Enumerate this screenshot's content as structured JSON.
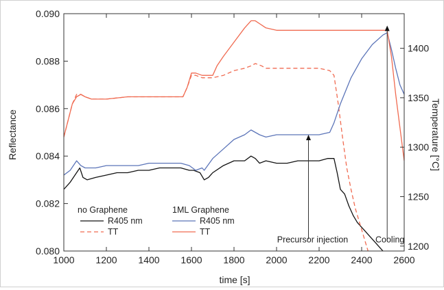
{
  "chart_data": {
    "type": "line",
    "xlabel": "time [s]",
    "ylabel_left": "Reflectance",
    "ylabel_right": "Temperature [°C]",
    "xlim": [
      1000,
      2600
    ],
    "ylim_left": [
      0.08,
      0.09
    ],
    "ylim_right": [
      1195,
      1435
    ],
    "x_ticks": [
      "1000",
      "1200",
      "1400",
      "1600",
      "1800",
      "2000",
      "2200",
      "2400",
      "2600"
    ],
    "y_left_ticks": [
      "0.080",
      "0.082",
      "0.084",
      "0.086",
      "0.088",
      "0.090"
    ],
    "y_right_ticks": [
      "1200",
      "1250",
      "1300",
      "1350",
      "1400"
    ],
    "legend": {
      "group1_title": "no Graphene",
      "group2_title": "1ML Graphene",
      "entries": [
        {
          "label": "R405 nm",
          "series": "noG_R"
        },
        {
          "label": "TT",
          "series": "noG_TT"
        },
        {
          "label": "R405 nm",
          "series": "G_R"
        },
        {
          "label": "TT",
          "series": "G_TT"
        }
      ]
    },
    "annotations": [
      {
        "text": "Precursor injection",
        "x": 2150,
        "y_left": 0.0849,
        "text_x": 2150,
        "text_y_left": 0.0805
      },
      {
        "text": "Cooling",
        "x": 2520,
        "y_left": 0.0895,
        "text_x": 2520,
        "text_y_left": 0.0805
      }
    ],
    "series": [
      {
        "id": "noG_R",
        "axis": "left",
        "color": "#111111",
        "dash": "",
        "x": [
          1000,
          1030,
          1060,
          1075,
          1090,
          1110,
          1150,
          1200,
          1250,
          1300,
          1350,
          1400,
          1450,
          1500,
          1550,
          1590,
          1610,
          1640,
          1660,
          1680,
          1700,
          1750,
          1800,
          1850,
          1880,
          1900,
          1920,
          1950,
          2000,
          2050,
          2100,
          2150,
          2200,
          2240,
          2270,
          2285,
          2300,
          2320,
          2340,
          2360,
          2380,
          2400,
          2420,
          2440,
          2460,
          2480,
          2500,
          2520
        ],
        "y": [
          0.0826,
          0.0829,
          0.0833,
          0.0835,
          0.0831,
          0.083,
          0.0831,
          0.0832,
          0.0833,
          0.0833,
          0.0834,
          0.0834,
          0.0835,
          0.0835,
          0.0835,
          0.0834,
          0.0834,
          0.0833,
          0.083,
          0.0831,
          0.0833,
          0.0836,
          0.0838,
          0.0838,
          0.084,
          0.0839,
          0.0837,
          0.0838,
          0.0837,
          0.0837,
          0.0838,
          0.0838,
          0.0838,
          0.0839,
          0.0839,
          0.0833,
          0.0826,
          0.0824,
          0.0819,
          0.0815,
          0.0812,
          0.081,
          0.0808,
          0.0806,
          0.0804,
          0.0802,
          0.08,
          0.0798
        ]
      },
      {
        "id": "noG_TT",
        "axis": "left",
        "color": "#f06a50",
        "dash": "6,4",
        "x": [
          1000,
          1020,
          1040,
          1060,
          1080,
          1100,
          1130,
          1200,
          1300,
          1400,
          1500,
          1560,
          1580,
          1600,
          1620,
          1650,
          1700,
          1750,
          1800,
          1850,
          1880,
          1900,
          1930,
          1950,
          2000,
          2050,
          2100,
          2150,
          2200,
          2250,
          2270,
          2290,
          2310,
          2330,
          2350,
          2370,
          2390,
          2410,
          2430
        ],
        "y": [
          0.0848,
          0.0855,
          0.0862,
          0.0866,
          0.0866,
          0.0865,
          0.0864,
          0.0864,
          0.0865,
          0.0865,
          0.0865,
          0.0865,
          0.0869,
          0.0874,
          0.0874,
          0.0873,
          0.0873,
          0.0874,
          0.0876,
          0.0877,
          0.0878,
          0.0879,
          0.0878,
          0.0877,
          0.0877,
          0.0877,
          0.0877,
          0.0877,
          0.0877,
          0.0876,
          0.0874,
          0.0862,
          0.0848,
          0.0835,
          0.0826,
          0.0818,
          0.0812,
          0.0806,
          0.08
        ]
      },
      {
        "id": "G_R",
        "axis": "left",
        "color": "#5b74b8",
        "dash": "",
        "x": [
          1000,
          1030,
          1060,
          1080,
          1100,
          1150,
          1200,
          1250,
          1300,
          1350,
          1400,
          1450,
          1500,
          1550,
          1590,
          1620,
          1650,
          1660,
          1700,
          1750,
          1800,
          1850,
          1880,
          1900,
          1920,
          1950,
          2000,
          2050,
          2100,
          2150,
          2200,
          2250,
          2270,
          2300,
          2350,
          2400,
          2450,
          2500,
          2520,
          2540,
          2560,
          2580,
          2600
        ],
        "y": [
          0.0832,
          0.0834,
          0.0838,
          0.0836,
          0.0835,
          0.0835,
          0.0836,
          0.0836,
          0.0836,
          0.0836,
          0.0837,
          0.0837,
          0.0837,
          0.0837,
          0.0836,
          0.0834,
          0.0835,
          0.0834,
          0.0839,
          0.0843,
          0.0847,
          0.0849,
          0.0851,
          0.085,
          0.0849,
          0.0848,
          0.0849,
          0.0849,
          0.0849,
          0.0849,
          0.0849,
          0.085,
          0.0854,
          0.0862,
          0.0873,
          0.0881,
          0.0887,
          0.0891,
          0.0892,
          0.0885,
          0.0877,
          0.087,
          0.0866
        ]
      },
      {
        "id": "G_TT",
        "axis": "left",
        "color": "#f06a50",
        "dash": "",
        "x": [
          1000,
          1020,
          1040,
          1060,
          1080,
          1100,
          1130,
          1200,
          1300,
          1400,
          1500,
          1560,
          1580,
          1600,
          1620,
          1650,
          1700,
          1720,
          1750,
          1800,
          1850,
          1880,
          1900,
          1950,
          2000,
          2050,
          2100,
          2150,
          2200,
          2250,
          2300,
          2350,
          2400,
          2450,
          2500,
          2520,
          2540,
          2560,
          2580,
          2600
        ],
        "y": [
          0.0848,
          0.0855,
          0.0862,
          0.0865,
          0.0866,
          0.0865,
          0.0864,
          0.0864,
          0.0865,
          0.0865,
          0.0865,
          0.0865,
          0.0869,
          0.0875,
          0.0875,
          0.0874,
          0.0874,
          0.0878,
          0.0882,
          0.0888,
          0.0894,
          0.0897,
          0.0897,
          0.0894,
          0.0893,
          0.0893,
          0.0893,
          0.0893,
          0.0893,
          0.0893,
          0.0893,
          0.0893,
          0.0893,
          0.0893,
          0.0893,
          0.0893,
          0.0882,
          0.0866,
          0.0852,
          0.0838
        ]
      }
    ]
  }
}
